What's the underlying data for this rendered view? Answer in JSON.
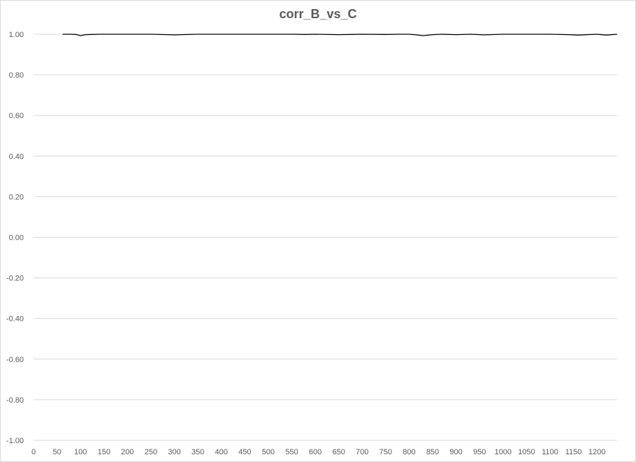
{
  "chart_data": {
    "type": "line",
    "title": "corr_B_vs_C",
    "xlabel": "",
    "ylabel": "",
    "xlim": [
      0,
      1243
    ],
    "ylim": [
      -1.0,
      1.0
    ],
    "y_ticks": [
      "-1.00",
      "-0.80",
      "-0.60",
      "-0.40",
      "-0.20",
      "0.00",
      "0.20",
      "0.40",
      "0.60",
      "0.80",
      "1.00"
    ],
    "y_tick_values": [
      -1.0,
      -0.8,
      -0.6,
      -0.4,
      -0.2,
      0.0,
      0.2,
      0.4,
      0.6,
      0.8,
      1.0
    ],
    "x_ticks": [
      "0",
      "50",
      "100",
      "150",
      "200",
      "250",
      "300",
      "350",
      "400",
      "450",
      "500",
      "550",
      "600",
      "650",
      "700",
      "750",
      "800",
      "850",
      "900",
      "950",
      "1000",
      "1050",
      "1100",
      "1150",
      "1200"
    ],
    "x_tick_values": [
      0,
      50,
      100,
      150,
      200,
      250,
      300,
      350,
      400,
      450,
      500,
      550,
      600,
      650,
      700,
      750,
      800,
      850,
      900,
      950,
      1000,
      1050,
      1100,
      1150,
      1200
    ],
    "grid": true,
    "negative_tick_color": "#ff0000",
    "tick_color": "#595959",
    "line_color": "#000000",
    "series": [
      {
        "x": [
          62,
          80,
          90,
          100,
          110,
          140,
          200,
          250,
          300,
          350,
          400,
          450,
          500,
          550,
          580,
          600,
          650,
          700,
          750,
          780,
          800,
          815,
          830,
          850,
          870,
          900,
          930,
          960,
          1000,
          1050,
          1100,
          1140,
          1160,
          1200,
          1220,
          1243
        ],
        "y": [
          1.0,
          1.0,
          0.999,
          0.993,
          0.998,
          1.0,
          1.0,
          1.0,
          0.997,
          1.0,
          1.0,
          1.0,
          1.0,
          1.0,
          0.999,
          1.0,
          0.998,
          1.0,
          0.999,
          1.0,
          1.0,
          0.997,
          0.993,
          0.998,
          1.0,
          0.998,
          1.0,
          0.997,
          1.0,
          1.0,
          1.0,
          0.998,
          0.996,
          1.0,
          0.996,
          1.0
        ]
      }
    ]
  }
}
